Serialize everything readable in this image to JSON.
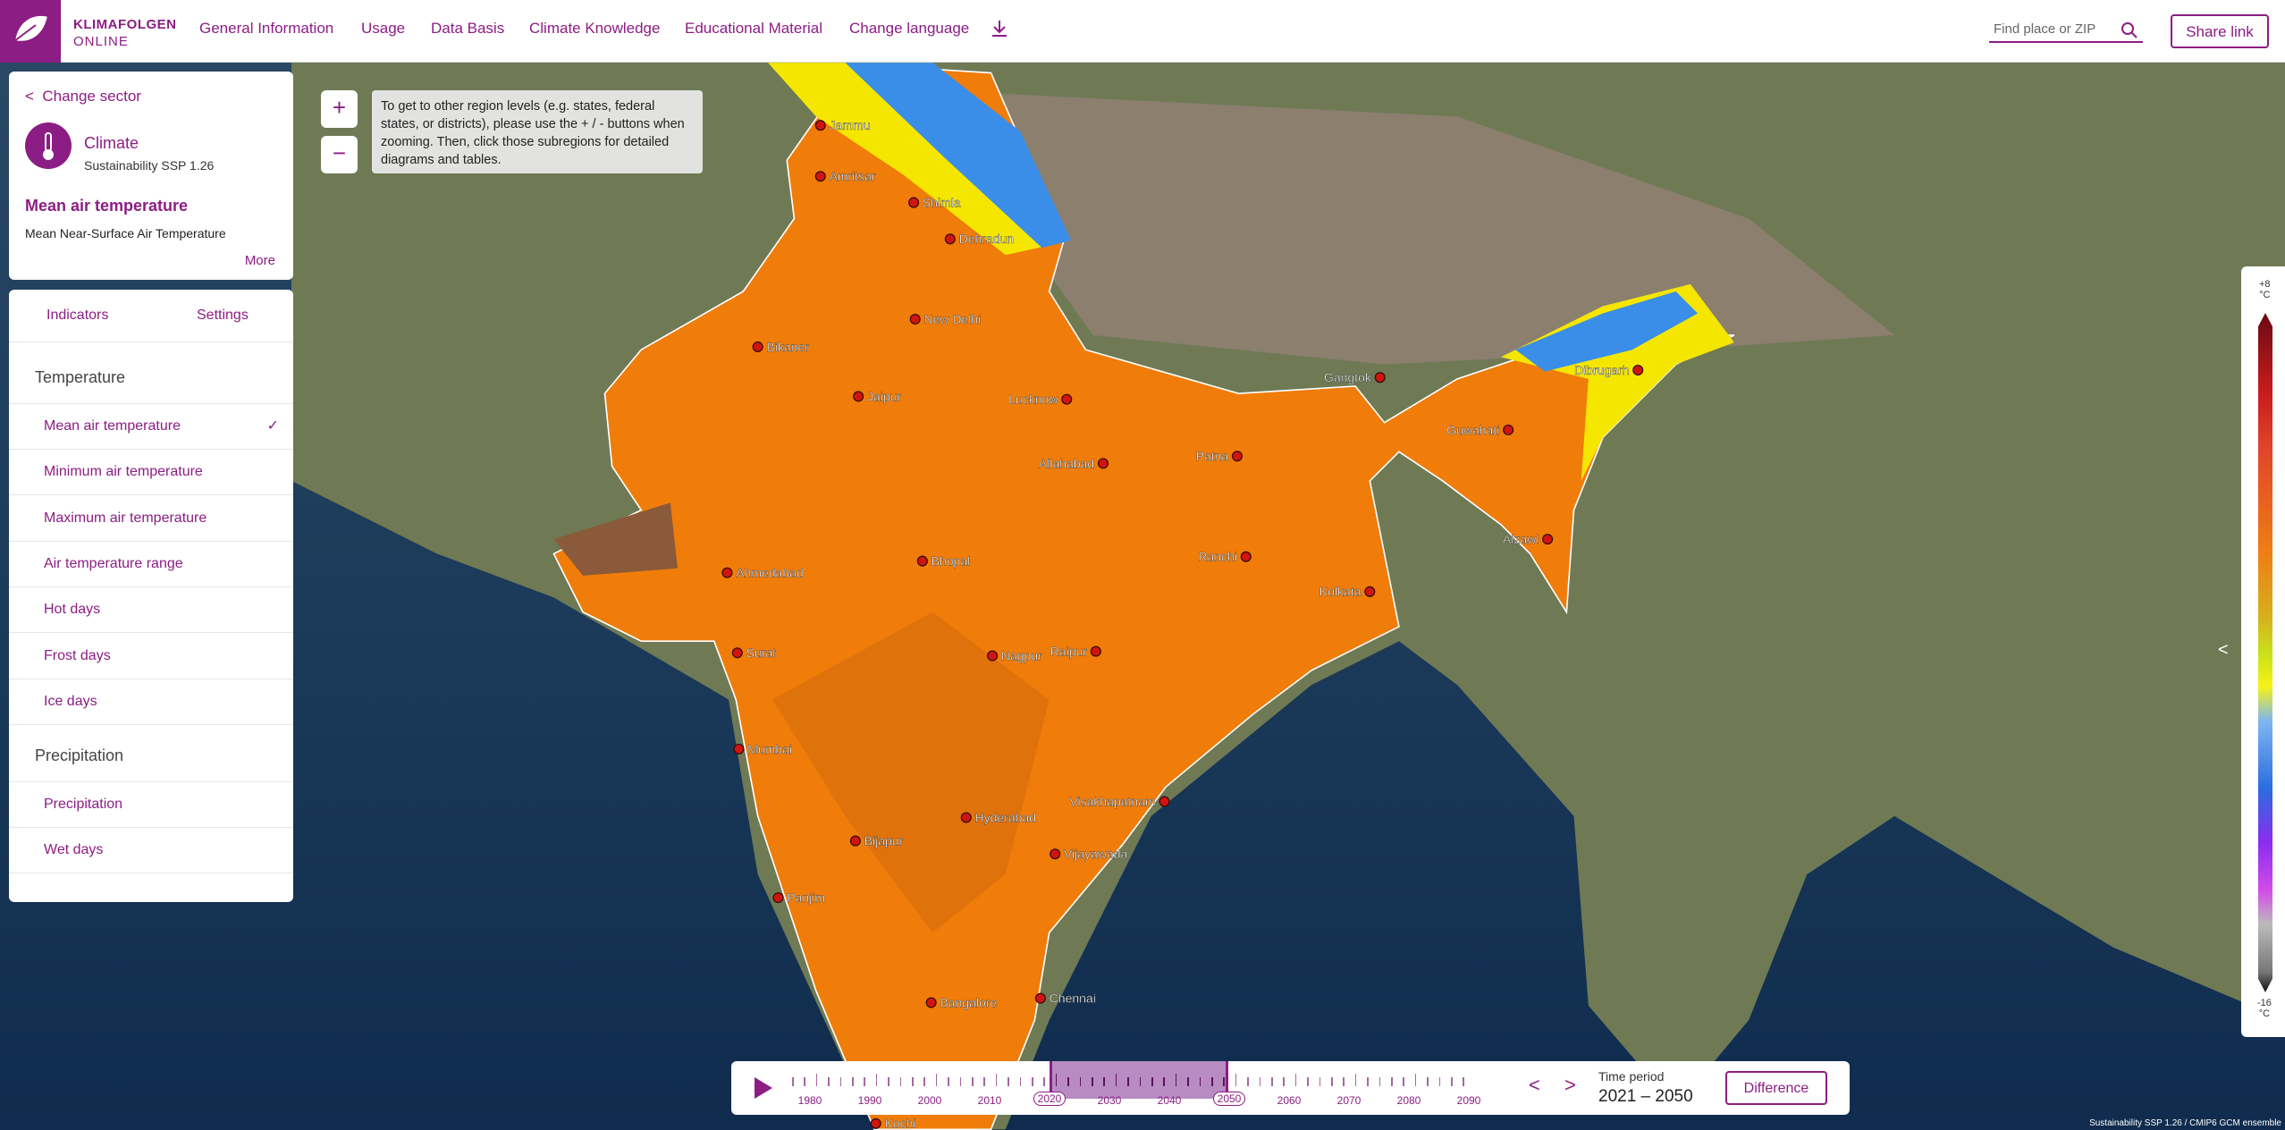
{
  "header": {
    "logo_line1": "KLIMAFOLGEN",
    "logo_line2": "ONLINE",
    "nav": [
      "General Information",
      "Usage",
      "Data Basis",
      "Climate Knowledge",
      "Educational Material",
      "Change language"
    ],
    "search_placeholder": "Find place or ZIP",
    "share_button": "Share link"
  },
  "sector_card": {
    "back": "Change sector",
    "sector": "Climate",
    "scenario": "Sustainability SSP 1.26",
    "indicator": "Mean air temperature",
    "indicator_description": "Mean Near-Surface Air Temperature",
    "more": "More"
  },
  "indicator_panel": {
    "tabs": [
      "Indicators",
      "Settings"
    ],
    "groups": [
      {
        "title": "Temperature",
        "items": [
          "Mean air temperature",
          "Minimum air temperature",
          "Maximum air temperature",
          "Air temperature range",
          "Hot days",
          "Frost days",
          "Ice days"
        ]
      },
      {
        "title": "Precipitation",
        "items": [
          "Precipitation",
          "Wet days"
        ]
      }
    ]
  },
  "map": {
    "zoom_in": "+",
    "zoom_out": "−",
    "hint": "To get to other region levels (e.g. states, federal states, or districts), please use the + / - buttons when zooming. Then, click those subregions for detailed diagrams and tables.",
    "cities": [
      "Jammu",
      "Amritsar",
      "Shimla",
      "Dehradun",
      "New Delhi",
      "Bikaner",
      "Jaipur",
      "Lucknow",
      "Allahabad",
      "Patna",
      "Gangtok",
      "Dibrugarh",
      "Guwahati",
      "Aizawl",
      "Ahmedabad",
      "Bhopal",
      "Ranchi",
      "Kolkata",
      "Surat",
      "Nagpur",
      "Raipur",
      "Mumbai",
      "Hyderabad",
      "Visakhapatnam",
      "Bijapur",
      "Vijayawada",
      "Panjim",
      "Chennai",
      "Bangalore",
      "Kochi"
    ],
    "attribution": "Sustainability SSP 1.26 / CMIP6 GCM ensemble"
  },
  "legend": {
    "top_value": "+8",
    "top_unit": "°C",
    "bottom_value": "-16",
    "bottom_unit": "°C"
  },
  "timeline": {
    "years": [
      "1980",
      "1990",
      "2000",
      "2010",
      "2020",
      "2030",
      "2040",
      "2050",
      "2060",
      "2070",
      "2080",
      "2090"
    ],
    "time_period_label": "Time period",
    "time_period": "2021 – 2050",
    "difference_button": "Difference"
  }
}
